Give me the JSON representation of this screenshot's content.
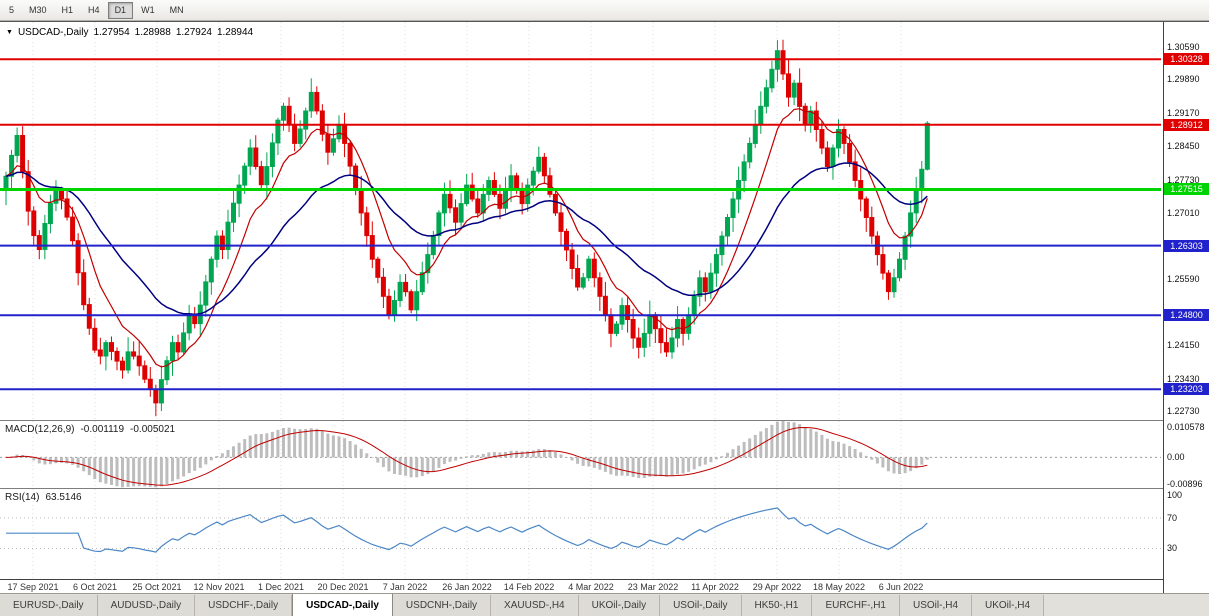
{
  "toolbar": {
    "timeframes": [
      "5",
      "M30",
      "H1",
      "H4",
      "D1",
      "W1",
      "MN"
    ],
    "active": "D1"
  },
  "chart_header": {
    "marker": "▼",
    "symbol": "USDCAD-,Daily",
    "open": "1.27954",
    "high": "1.28988",
    "low": "1.27924",
    "close": "1.28944"
  },
  "main_chart": {
    "range": [
      1.2254,
      1.3113
    ],
    "ticks": [
      {
        "label": "1.30590",
        "value": 1.3059
      },
      {
        "label": "1.29890",
        "value": 1.2989
      },
      {
        "label": "1.29170",
        "value": 1.2917
      },
      {
        "label": "1.28450",
        "value": 1.2845
      },
      {
        "label": "1.27730",
        "value": 1.2773
      },
      {
        "label": "1.27010",
        "value": 1.2701
      },
      {
        "label": "1.25590",
        "value": 1.2559
      },
      {
        "label": "1.24150",
        "value": 1.2415
      },
      {
        "label": "1.23430",
        "value": 1.2343
      },
      {
        "label": "1.22730",
        "value": 1.2273
      }
    ],
    "hlines": [
      {
        "label": "1.30328",
        "value": 1.30328,
        "color": "#E00000",
        "width": 2
      },
      {
        "label": "1.28912",
        "value": 1.28912,
        "color": "#E00000",
        "width": 2
      },
      {
        "label": "1.27515",
        "value": 1.27515,
        "color": "#00D400",
        "width": 3
      },
      {
        "label": "1.26303",
        "value": 1.26303,
        "color": "#2222CC",
        "width": 2
      },
      {
        "label": "1.24800",
        "value": 1.248,
        "color": "#2222CC",
        "width": 2
      },
      {
        "label": "1.23203",
        "value": 1.23203,
        "color": "#2222CC",
        "width": 2
      }
    ],
    "colors": {
      "up": "#00A651",
      "down": "#DE0000",
      "ma_fast": "#C00000",
      "ma_slow": "#000080",
      "grid": "#dedede"
    }
  },
  "macd": {
    "label": "MACD(12,26,9)",
    "main_value": "-0.001119",
    "signal_value": "-0.005021",
    "range": [
      -0.0105,
      0.0125
    ],
    "ticks": [
      {
        "label": "0.010578",
        "value": 0.010578
      },
      {
        "label": "0.00",
        "value": 0
      },
      {
        "label": "-0.00896",
        "value": -0.00896
      }
    ],
    "colors": {
      "histogram": "#BDBDBD",
      "signal": "#C00000",
      "zero_line": "#9a9a9a"
    }
  },
  "rsi": {
    "label": "RSI(14)",
    "value": "63.5146",
    "range": [
      -10,
      108
    ],
    "ticks": [
      {
        "label": "100",
        "value": 100
      },
      {
        "label": "70",
        "value": 70
      },
      {
        "label": "30",
        "value": 30
      }
    ],
    "levels": [
      70,
      30
    ],
    "colors": {
      "line": "#4C87C7",
      "level": "#bdbdbd"
    }
  },
  "tabs": {
    "active_index": 3,
    "items": [
      {
        "label": "EURUSD-,Daily"
      },
      {
        "label": "AUDUSD-,Daily"
      },
      {
        "label": "USDCHF-,Daily"
      },
      {
        "label": "USDCAD-,Daily"
      },
      {
        "label": "USDCNH-,Daily"
      },
      {
        "label": "XAUUSD-,H4"
      },
      {
        "label": "UKOil-,Daily"
      },
      {
        "label": "USOil-,Daily"
      },
      {
        "label": "HK50-,H1"
      },
      {
        "label": "EURCHF-,H1"
      },
      {
        "label": "USOil-,H4"
      },
      {
        "label": "UKOil-,H4"
      }
    ]
  },
  "chart_data": {
    "type": "candlestick",
    "symbol": "USDCAD",
    "timeframe": "Daily",
    "title": "USDCAD-,Daily",
    "ohlc_last": {
      "open": 1.27954,
      "high": 1.28988,
      "low": 1.27924,
      "close": 1.28944
    },
    "x_labels": [
      "17 Sep 2021",
      "6 Oct 2021",
      "25 Oct 2021",
      "12 Nov 2021",
      "1 Dec 2021",
      "20 Dec 2021",
      "7 Jan 2022",
      "26 Jan 2022",
      "14 Feb 2022",
      "4 Mar 2022",
      "23 Mar 2022",
      "11 Apr 2022",
      "29 Apr 2022",
      "18 May 2022",
      "6 Jun 2022"
    ],
    "closes": [
      1.278,
      1.2825,
      1.2868,
      1.279,
      1.2705,
      1.2652,
      1.2622,
      1.2678,
      1.2722,
      1.2752,
      1.2731,
      1.2692,
      1.2641,
      1.2572,
      1.2503,
      1.2452,
      1.2405,
      1.2392,
      1.2421,
      1.2402,
      1.2381,
      1.2362,
      1.2401,
      1.2392,
      1.2371,
      1.2342,
      1.2321,
      1.2291,
      1.2341,
      1.2382,
      1.2421,
      1.2401,
      1.2442,
      1.2481,
      1.2462,
      1.2502,
      1.2552,
      1.2601,
      1.2651,
      1.2622,
      1.2681,
      1.2722,
      1.2761,
      1.2802,
      1.2841,
      1.2801,
      1.2762,
      1.2801,
      1.2852,
      1.2901,
      1.2931,
      1.2892,
      1.2851,
      1.2882,
      1.2921,
      1.2961,
      1.2921,
      1.2871,
      1.2832,
      1.2861,
      1.2892,
      1.2851,
      1.2802,
      1.2752,
      1.2701,
      1.2652,
      1.2601,
      1.2562,
      1.2521,
      1.2482,
      1.2512,
      1.2551,
      1.2531,
      1.2492,
      1.2531,
      1.2572,
      1.2611,
      1.2652,
      1.2701,
      1.2741,
      1.2712,
      1.2681,
      1.2721,
      1.2761,
      1.2731,
      1.2701,
      1.2741,
      1.2771,
      1.2741,
      1.2711,
      1.2751,
      1.2781,
      1.2751,
      1.2721,
      1.2761,
      1.2791,
      1.2821,
      1.2781,
      1.2741,
      1.2701,
      1.2661,
      1.2621,
      1.2581,
      1.2541,
      1.2561,
      1.2601,
      1.2561,
      1.2521,
      1.2481,
      1.2441,
      1.2461,
      1.2501,
      1.2471,
      1.2431,
      1.2411,
      1.2441,
      1.2481,
      1.2451,
      1.2421,
      1.2401,
      1.2431,
      1.2471,
      1.2441,
      1.2481,
      1.2521,
      1.2561,
      1.2531,
      1.2571,
      1.2611,
      1.2651,
      1.2691,
      1.2731,
      1.2771,
      1.2811,
      1.2851,
      1.2891,
      1.2931,
      1.2971,
      1.3011,
      1.3051,
      1.3001,
      1.2951,
      1.2981,
      1.2931,
      1.2891,
      1.2921,
      1.2881,
      1.2841,
      1.2801,
      1.2841,
      1.2881,
      1.2851,
      1.2811,
      1.2771,
      1.2731,
      1.2691,
      1.2651,
      1.2611,
      1.2571,
      1.2531,
      1.2561,
      1.2601,
      1.2651,
      1.2701,
      1.2751,
      1.2795,
      1.28944
    ],
    "moving_averages": [
      {
        "type": "ema",
        "period": 10,
        "color": "#C00000"
      },
      {
        "type": "ema",
        "period": 30,
        "color": "#000080"
      }
    ],
    "indicators": [
      {
        "name": "MACD",
        "params": [
          12,
          26,
          9
        ],
        "values": [
          "-0.001119",
          "-0.005021"
        ]
      },
      {
        "name": "RSI",
        "params": [
          14
        ],
        "value": "63.5146"
      }
    ]
  }
}
